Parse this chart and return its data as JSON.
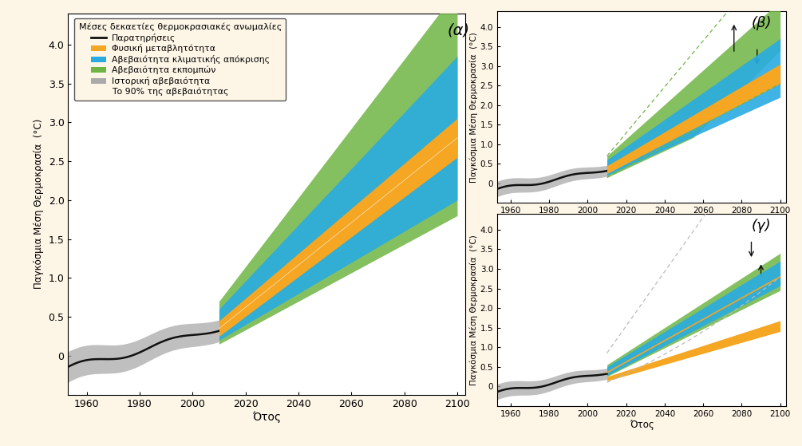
{
  "background_color": "#fdf5e6",
  "legend_title": "Μέσες δεκαετίες θερμοκρασιακές ανωμαλίες",
  "legend_items": [
    "Παρατηρήσεις",
    "Φυσική μεταβλητότητα",
    "Αβεβαιότητα κλιματικής απόκρισης",
    "Αβεβαιότητα εκπομπών",
    "Ιστορική αβεβαιότητα",
    "Το 90% της αβεβαιότητας"
  ],
  "colors": {
    "orange": "#f5a623",
    "cyan": "#29abe2",
    "green": "#70b544",
    "gray": "#aaaaaa",
    "black": "#111111"
  },
  "xlabel": "Ότος",
  "ylabel": "Παγκόσμια Μέση Θερμοκρασία  (°C)",
  "panel_labels": [
    "(α)",
    "(β)",
    "(γ)"
  ]
}
